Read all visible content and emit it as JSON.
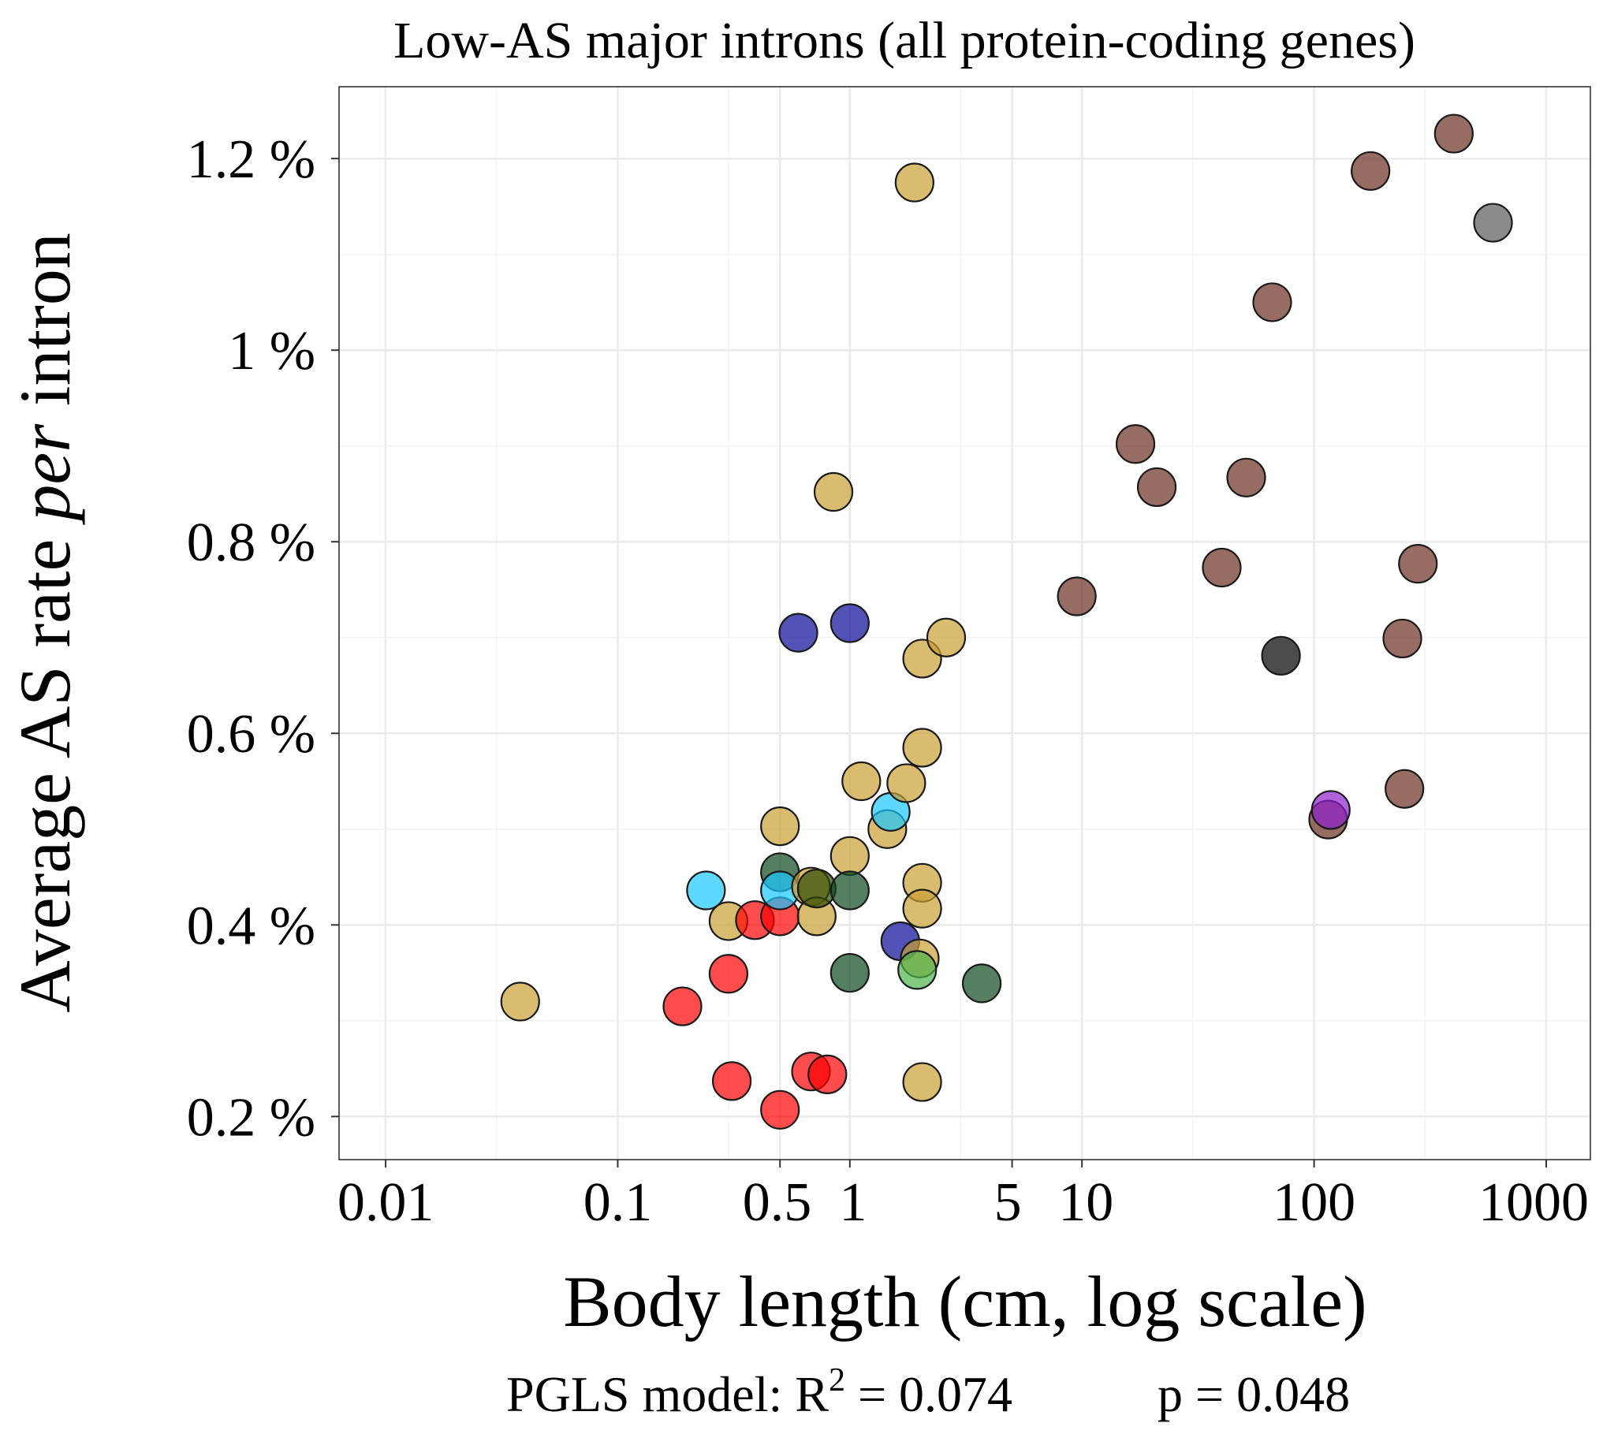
{
  "chart_data": {
    "type": "scatter",
    "title": "Low-AS major introns (all protein-coding genes)",
    "xlabel": "Body length (cm, log scale)",
    "ylabel": {
      "pre": "Average AS rate ",
      "italic": "per",
      "post": " intron"
    },
    "x_scale": "log10",
    "xlim": [
      0.0063,
      1550
    ],
    "ylim": [
      0.155,
      1.275
    ],
    "x_ticks": [
      {
        "value": 0.01,
        "label": "0.01"
      },
      {
        "value": 0.1,
        "label": "0.1"
      },
      {
        "value": 0.5,
        "label": "0.5"
      },
      {
        "value": 1,
        "label": "1"
      },
      {
        "value": 5,
        "label": "5"
      },
      {
        "value": 10,
        "label": "10"
      },
      {
        "value": 100,
        "label": "100"
      },
      {
        "value": 1000,
        "label": "1000"
      }
    ],
    "x_minor_grid": [
      0.03,
      0.3,
      3,
      30,
      300
    ],
    "y_ticks": [
      {
        "value": 0.2,
        "label": "0.2 %"
      },
      {
        "value": 0.4,
        "label": "0.4 %"
      },
      {
        "value": 0.6,
        "label": "0.6 %"
      },
      {
        "value": 0.8,
        "label": "0.8 %"
      },
      {
        "value": 1.0,
        "label": "1 %"
      },
      {
        "value": 1.2,
        "label": "1.2 %"
      }
    ],
    "y_minor_grid": [
      0.3,
      0.5,
      0.7,
      0.9,
      1.1
    ],
    "grid": true,
    "legend": "none",
    "caption": {
      "model": "PGLS model: R",
      "sup": "2",
      "r2": " = 0.074",
      "p": "p = 0.048"
    },
    "colors": {
      "gold": "#C9A032",
      "red": "#FF0000",
      "cyan": "#1AC8FF",
      "darkgreen": "#0B4A1E",
      "olive": "#2E4A05",
      "lightgreen": "#4DB34D",
      "navy": "#0A0A99",
      "brown": "#6B2E1F",
      "purple": "#8E1FCC",
      "black": "#000000",
      "gray": "#5A5A5A"
    },
    "points": [
      {
        "x": 0.038,
        "y": 0.32,
        "color": "gold"
      },
      {
        "x": 0.19,
        "y": 0.315,
        "color": "red"
      },
      {
        "x": 0.24,
        "y": 0.436,
        "color": "cyan"
      },
      {
        "x": 0.3,
        "y": 0.404,
        "color": "gold"
      },
      {
        "x": 0.3,
        "y": 0.349,
        "color": "red"
      },
      {
        "x": 0.31,
        "y": 0.237,
        "color": "red"
      },
      {
        "x": 0.39,
        "y": 0.405,
        "color": "red"
      },
      {
        "x": 0.5,
        "y": 0.409,
        "color": "red"
      },
      {
        "x": 0.5,
        "y": 0.503,
        "color": "gold"
      },
      {
        "x": 0.5,
        "y": 0.455,
        "color": "darkgreen"
      },
      {
        "x": 0.5,
        "y": 0.436,
        "color": "cyan"
      },
      {
        "x": 0.5,
        "y": 0.207,
        "color": "red"
      },
      {
        "x": 0.6,
        "y": 0.705,
        "color": "navy"
      },
      {
        "x": 0.68,
        "y": 0.247,
        "color": "red"
      },
      {
        "x": 0.68,
        "y": 0.44,
        "color": "gold"
      },
      {
        "x": 0.72,
        "y": 0.409,
        "color": "gold"
      },
      {
        "x": 0.72,
        "y": 0.438,
        "color": "olive"
      },
      {
        "x": 0.8,
        "y": 0.244,
        "color": "red"
      },
      {
        "x": 0.85,
        "y": 0.852,
        "color": "gold"
      },
      {
        "x": 1.0,
        "y": 0.715,
        "color": "navy"
      },
      {
        "x": 1.0,
        "y": 0.472,
        "color": "gold"
      },
      {
        "x": 1.0,
        "y": 0.436,
        "color": "darkgreen"
      },
      {
        "x": 1.0,
        "y": 0.35,
        "color": "darkgreen"
      },
      {
        "x": 1.12,
        "y": 0.55,
        "color": "gold"
      },
      {
        "x": 1.45,
        "y": 0.5,
        "color": "gold"
      },
      {
        "x": 1.5,
        "y": 0.518,
        "color": "cyan"
      },
      {
        "x": 1.65,
        "y": 0.383,
        "color": "navy"
      },
      {
        "x": 1.75,
        "y": 0.548,
        "color": "gold"
      },
      {
        "x": 1.9,
        "y": 1.175,
        "color": "gold"
      },
      {
        "x": 2.0,
        "y": 0.365,
        "color": "gold"
      },
      {
        "x": 1.95,
        "y": 0.353,
        "color": "lightgreen"
      },
      {
        "x": 2.05,
        "y": 0.678,
        "color": "gold"
      },
      {
        "x": 2.05,
        "y": 0.585,
        "color": "gold"
      },
      {
        "x": 2.05,
        "y": 0.444,
        "color": "gold"
      },
      {
        "x": 2.05,
        "y": 0.417,
        "color": "gold"
      },
      {
        "x": 2.05,
        "y": 0.236,
        "color": "gold"
      },
      {
        "x": 2.6,
        "y": 0.7,
        "color": "gold"
      },
      {
        "x": 3.7,
        "y": 0.339,
        "color": "darkgreen"
      },
      {
        "x": 9.5,
        "y": 0.743,
        "color": "brown"
      },
      {
        "x": 17,
        "y": 0.902,
        "color": "brown"
      },
      {
        "x": 21,
        "y": 0.857,
        "color": "brown"
      },
      {
        "x": 40,
        "y": 0.773,
        "color": "brown"
      },
      {
        "x": 51,
        "y": 0.867,
        "color": "brown"
      },
      {
        "x": 66,
        "y": 1.05,
        "color": "brown"
      },
      {
        "x": 72,
        "y": 0.681,
        "color": "black"
      },
      {
        "x": 115,
        "y": 0.51,
        "color": "brown"
      },
      {
        "x": 118,
        "y": 0.52,
        "color": "purple"
      },
      {
        "x": 175,
        "y": 1.187,
        "color": "brown"
      },
      {
        "x": 240,
        "y": 0.699,
        "color": "brown"
      },
      {
        "x": 245,
        "y": 0.542,
        "color": "brown"
      },
      {
        "x": 280,
        "y": 0.777,
        "color": "brown"
      },
      {
        "x": 400,
        "y": 1.226,
        "color": "brown"
      },
      {
        "x": 590,
        "y": 1.133,
        "color": "gray"
      }
    ]
  }
}
